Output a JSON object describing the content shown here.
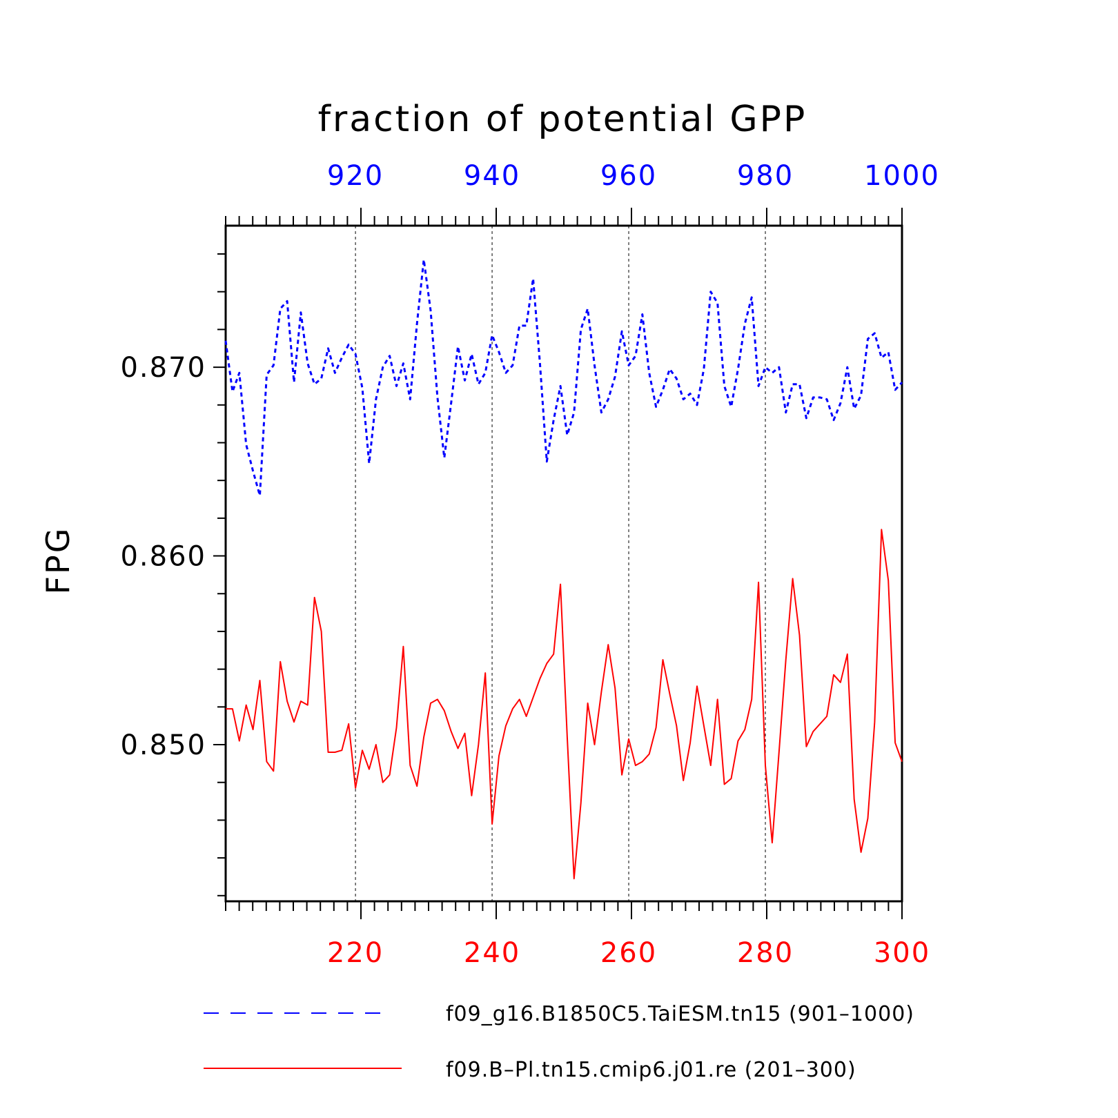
{
  "chart_data": {
    "type": "line",
    "title": "fraction of potential GPP",
    "ylabel": "FPG",
    "ylim": [
      0.8417,
      0.8775
    ],
    "yticks_major": [
      0.85,
      0.86,
      0.87
    ],
    "ytick_labels": [
      "0.850",
      "0.860",
      "0.870"
    ],
    "grid": "vertical dashed lines at labeled x ticks",
    "legend_position": "bottom",
    "colors": {
      "series_a": "#0000ff",
      "series_b": "#ff0000",
      "axis": "#000000",
      "grid": "#000000"
    },
    "x_top": {
      "range": [
        901,
        1000
      ],
      "ticks": [
        920,
        940,
        960,
        980,
        1000
      ],
      "tick_labels": [
        "920",
        "940",
        "960",
        "980",
        "1000"
      ]
    },
    "x_bottom": {
      "range": [
        201,
        300
      ],
      "ticks": [
        220,
        240,
        260,
        280,
        300
      ],
      "tick_labels": [
        "220",
        "240",
        "260",
        "280",
        "300"
      ]
    },
    "series": [
      {
        "name": "f09_g16.B1850C5.TaiESM.tn15 (901–1000)",
        "axis": "top",
        "style": "dashed",
        "x_start": 901,
        "values": [
          0.8714,
          0.8687,
          0.8697,
          0.8659,
          0.8645,
          0.8632,
          0.8696,
          0.8701,
          0.8731,
          0.8735,
          0.8692,
          0.8729,
          0.8702,
          0.8691,
          0.8694,
          0.871,
          0.8697,
          0.8705,
          0.8712,
          0.8707,
          0.8689,
          0.8649,
          0.8683,
          0.87,
          0.8706,
          0.869,
          0.8702,
          0.8683,
          0.8723,
          0.8757,
          0.873,
          0.8684,
          0.8652,
          0.8681,
          0.8711,
          0.8693,
          0.8707,
          0.8691,
          0.8697,
          0.8717,
          0.8708,
          0.8697,
          0.8701,
          0.8722,
          0.8722,
          0.8747,
          0.8702,
          0.865,
          0.8672,
          0.869,
          0.8664,
          0.8676,
          0.872,
          0.8731,
          0.8701,
          0.8676,
          0.8683,
          0.8695,
          0.8719,
          0.8701,
          0.8706,
          0.8728,
          0.8697,
          0.8679,
          0.8688,
          0.8699,
          0.8694,
          0.8683,
          0.8686,
          0.868,
          0.8699,
          0.874,
          0.8734,
          0.869,
          0.8679,
          0.8699,
          0.8723,
          0.8737,
          0.869,
          0.87,
          0.8697,
          0.87,
          0.8676,
          0.8691,
          0.8691,
          0.8673,
          0.8684,
          0.8684,
          0.8683,
          0.8672,
          0.8681,
          0.87,
          0.8678,
          0.8685,
          0.8715,
          0.8718,
          0.8705,
          0.8708,
          0.8688,
          0.8692
        ]
      },
      {
        "name": "f09.B–Pl.tn15.cmip6.j01.re (201–300)",
        "axis": "bottom",
        "style": "solid",
        "x_start": 201,
        "values": [
          0.8519,
          0.8519,
          0.8502,
          0.8521,
          0.8508,
          0.8534,
          0.8491,
          0.8486,
          0.8544,
          0.8523,
          0.8512,
          0.8523,
          0.8521,
          0.8578,
          0.856,
          0.8496,
          0.8496,
          0.8497,
          0.8511,
          0.8477,
          0.8497,
          0.8487,
          0.85,
          0.848,
          0.8484,
          0.8509,
          0.8552,
          0.8489,
          0.8478,
          0.8504,
          0.8522,
          0.8524,
          0.8518,
          0.8507,
          0.8498,
          0.8506,
          0.8473,
          0.85,
          0.8538,
          0.8458,
          0.8494,
          0.851,
          0.8519,
          0.8524,
          0.8515,
          0.8525,
          0.8535,
          0.8543,
          0.8548,
          0.8585,
          0.8504,
          0.8429,
          0.8469,
          0.8522,
          0.85,
          0.8528,
          0.8553,
          0.853,
          0.8484,
          0.8503,
          0.8489,
          0.8491,
          0.8495,
          0.8509,
          0.8545,
          0.8527,
          0.851,
          0.8481,
          0.8501,
          0.8531,
          0.851,
          0.8489,
          0.8524,
          0.8479,
          0.8482,
          0.8502,
          0.8508,
          0.8524,
          0.8586,
          0.8489,
          0.8448,
          0.8496,
          0.8545,
          0.8588,
          0.8558,
          0.8499,
          0.8507,
          0.8511,
          0.8515,
          0.8537,
          0.8533,
          0.8548,
          0.8471,
          0.8443,
          0.8461,
          0.8512,
          0.8614,
          0.8587,
          0.8501,
          0.8491
        ]
      }
    ]
  }
}
